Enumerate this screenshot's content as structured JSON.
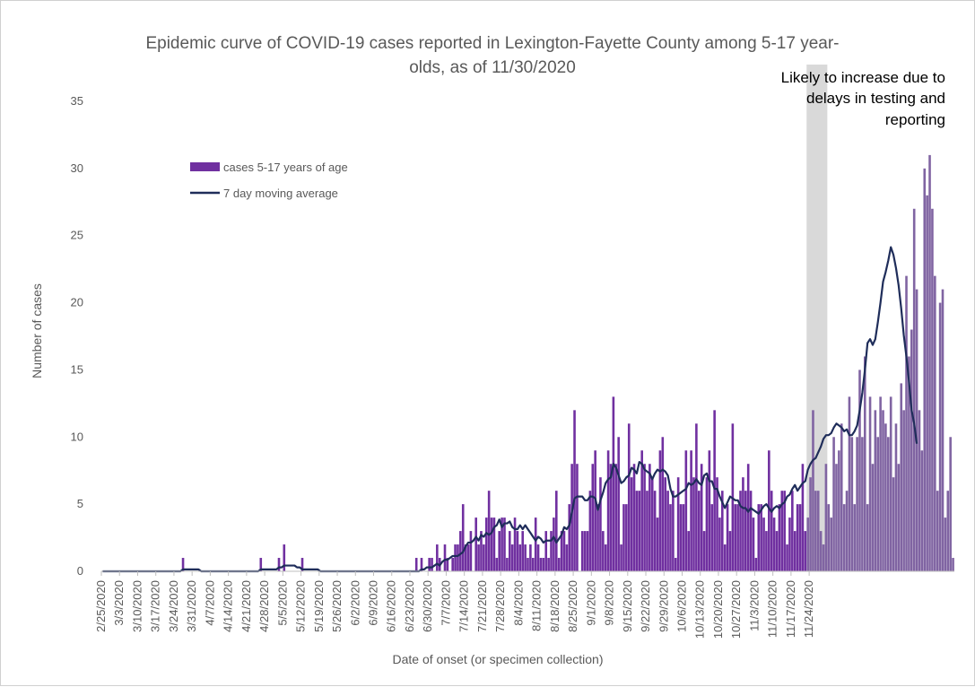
{
  "chart_data": {
    "type": "bar",
    "title_lines": [
      "Epidemic curve of COVID-19 cases reported in Lexington-Fayette County among 5-17 year-",
      "olds, as of 11/30/2020"
    ],
    "xlabel": "Date of onset (or specimen collection)",
    "ylabel": "Number of cases",
    "ylim": [
      0,
      35
    ],
    "yticks": [
      0,
      5,
      10,
      15,
      20,
      25,
      30,
      35
    ],
    "start_date": "2/25/2020",
    "xticks": [
      "2/25/2020",
      "3/3/2020",
      "3/10/2020",
      "3/17/2020",
      "3/24/2020",
      "3/31/2020",
      "4/7/2020",
      "4/14/2020",
      "4/21/2020",
      "4/28/2020",
      "5/5/2020",
      "5/12/2020",
      "5/19/2020",
      "5/26/2020",
      "6/2/2020",
      "6/9/2020",
      "6/16/2020",
      "6/23/2020",
      "6/30/2020",
      "7/7/2020",
      "7/14/2020",
      "7/21/2020",
      "7/28/2020",
      "8/4/2020",
      "8/11/2020",
      "8/18/2020",
      "8/25/2020",
      "9/1/2020",
      "9/8/2020",
      "9/15/2020",
      "9/22/2020",
      "9/29/2020",
      "10/6/2020",
      "10/13/2020",
      "10/20/2020",
      "10/27/2020",
      "11/3/2020",
      "11/10/2020",
      "11/17/2020",
      "11/24/2020"
    ],
    "grid": false,
    "legend": {
      "position": "upper-left",
      "entries": [
        "cases 5-17 years of age",
        "7 day moving average"
      ]
    },
    "annotation": {
      "lines": [
        "Likely to increase due to",
        "delays in testing and",
        "reporting"
      ],
      "shaded_from": "11/23/2020",
      "shaded_to": "11/30/2020"
    },
    "series": [
      {
        "name": "cases 5-17 years of age",
        "type": "bar",
        "color": "#7030a0",
        "values": [
          0,
          0,
          0,
          0,
          0,
          0,
          0,
          0,
          0,
          0,
          0,
          0,
          0,
          0,
          0,
          0,
          0,
          0,
          0,
          0,
          0,
          0,
          0,
          0,
          0,
          0,
          0,
          0,
          0,
          0,
          0,
          1,
          0,
          0,
          0,
          0,
          0,
          0,
          0,
          0,
          0,
          0,
          0,
          0,
          0,
          0,
          0,
          0,
          0,
          0,
          0,
          0,
          0,
          0,
          0,
          0,
          0,
          0,
          0,
          0,
          0,
          1,
          0,
          0,
          0,
          0,
          0,
          0,
          1,
          0,
          2,
          0,
          0,
          0,
          0,
          0,
          0,
          1,
          0,
          0,
          0,
          0,
          0,
          0,
          0,
          0,
          0,
          0,
          0,
          0,
          0,
          0,
          0,
          0,
          0,
          0,
          0,
          0,
          0,
          0,
          0,
          0,
          0,
          0,
          0,
          0,
          0,
          0,
          0,
          0,
          0,
          0,
          0,
          0,
          0,
          0,
          0,
          0,
          0,
          0,
          0,
          1,
          0,
          1,
          0,
          0,
          1,
          1,
          0,
          2,
          1,
          0,
          2,
          1,
          0,
          1,
          2,
          2,
          3,
          5,
          2,
          2,
          3,
          0,
          4,
          2,
          3,
          2,
          4,
          6,
          4,
          4,
          1,
          3,
          4,
          4,
          1,
          3,
          2,
          4,
          3,
          2,
          3,
          2,
          1,
          2,
          1,
          4,
          2,
          1,
          1,
          3,
          1,
          3,
          4,
          6,
          1,
          3,
          3,
          2,
          5,
          8,
          12,
          8,
          0,
          3,
          3,
          3,
          6,
          8,
          9,
          5,
          7,
          3,
          2,
          9,
          8,
          13,
          8,
          10,
          2,
          5,
          5,
          11,
          7,
          8,
          6,
          6,
          9,
          8,
          6,
          8,
          7,
          6,
          4,
          9,
          10,
          7,
          6,
          5,
          6,
          1,
          7,
          5,
          5,
          9,
          3,
          9,
          7,
          11,
          6,
          8,
          3,
          7,
          9,
          5,
          12,
          7,
          4,
          6,
          2,
          5,
          3,
          11,
          5,
          5,
          6,
          7,
          6,
          8,
          6,
          4,
          1,
          5,
          5,
          4,
          3,
          9,
          6,
          4,
          3,
          5,
          6,
          6,
          2,
          4,
          6,
          3,
          5,
          5,
          8,
          3,
          4,
          7,
          12,
          6,
          6,
          3,
          2,
          8,
          5,
          4,
          10,
          8,
          9,
          11,
          5,
          6,
          13,
          10,
          5,
          10,
          15,
          10,
          16,
          5,
          13,
          8,
          12,
          10,
          13,
          12,
          11,
          10,
          13,
          7,
          11,
          8,
          14,
          12,
          22,
          16,
          18,
          27,
          21,
          12,
          9,
          30,
          28,
          31,
          27,
          22,
          6,
          20,
          21,
          4,
          6,
          10,
          1
        ]
      },
      {
        "name": "7 day moving average",
        "type": "line",
        "color": "#1f2d5a",
        "values": [
          0,
          0,
          0,
          0,
          0,
          0,
          0,
          0,
          0,
          0,
          0,
          0,
          0,
          0,
          0,
          0,
          0,
          0,
          0,
          0,
          0,
          0,
          0,
          0,
          0,
          0,
          0,
          0,
          0,
          0,
          0,
          0.14,
          0.14,
          0.14,
          0.14,
          0.14,
          0.14,
          0.14,
          0,
          0,
          0,
          0,
          0,
          0,
          0,
          0,
          0,
          0,
          0,
          0,
          0,
          0,
          0,
          0,
          0,
          0,
          0,
          0,
          0,
          0,
          0,
          0.14,
          0.14,
          0.14,
          0.14,
          0.14,
          0.14,
          0.14,
          0.29,
          0.29,
          0.43,
          0.43,
          0.43,
          0.43,
          0.43,
          0.29,
          0.29,
          0.14,
          0.14,
          0.14,
          0.14,
          0.14,
          0.14,
          0.14,
          0,
          0,
          0,
          0,
          0,
          0,
          0,
          0,
          0,
          0,
          0,
          0,
          0,
          0,
          0,
          0,
          0,
          0,
          0,
          0,
          0,
          0,
          0,
          0,
          0,
          0,
          0,
          0,
          0,
          0,
          0,
          0,
          0,
          0,
          0,
          0,
          0,
          0,
          0,
          0.14,
          0.14,
          0.29,
          0.29,
          0.29,
          0.43,
          0.57,
          0.43,
          0.71,
          0.86,
          0.86,
          1,
          1.14,
          1.14,
          1.14,
          1.29,
          1.43,
          1.86,
          2.14,
          2.14,
          2.29,
          2.57,
          2.29,
          2.71,
          2.57,
          2.86,
          2.71,
          2.86,
          3.29,
          3.43,
          3.86,
          3.29,
          3.57,
          3.57,
          3.71,
          3.29,
          3.14,
          3.14,
          3.43,
          3.14,
          3.43,
          3.14,
          2.86,
          2.57,
          2.29,
          2.57,
          2.43,
          2.14,
          2.29,
          2.29,
          2.29,
          2.57,
          2.14,
          2.43,
          2.71,
          3.29,
          3.14,
          3.43,
          4.43,
          5.43,
          5.57,
          5.57,
          5.57,
          5.29,
          5.29,
          5.57,
          5.57,
          5.43,
          4.57,
          5.29,
          5.86,
          6.57,
          6.86,
          7,
          8,
          7.71,
          7.14,
          6.57,
          6.71,
          7,
          7.14,
          7.71,
          7.57,
          7.29,
          8.14,
          8,
          7.57,
          7.43,
          7.29,
          6.86,
          7.29,
          7.57,
          7.43,
          7.57,
          7.43,
          7.14,
          6.14,
          5.57,
          5.57,
          5.71,
          5.86,
          6,
          6.14,
          6.57,
          6.43,
          6.57,
          6.86,
          6.57,
          6.43,
          7.14,
          7.29,
          6.71,
          6.71,
          6.14,
          6.14,
          5.57,
          5.14,
          4.71,
          5.14,
          5.57,
          5.43,
          5.29,
          5.29,
          4.86,
          4.71,
          4.71,
          4.43,
          4.71,
          4.57,
          4.43,
          4.29,
          4.57,
          4.86,
          5,
          4.71,
          4.43,
          4.71,
          4.86,
          4.71,
          5,
          5.14,
          5.57,
          5.71,
          6.14,
          6.43,
          6,
          6.29,
          6.57,
          6.71,
          7.57,
          8,
          8.29,
          8.43,
          8.86,
          9.29,
          9.86,
          10.14,
          10.14,
          10.29,
          10.71,
          11,
          10.86,
          10.71,
          10.43,
          10.57,
          10.14,
          10.14,
          10.43,
          10.86,
          12,
          13.29,
          15,
          17,
          17.29,
          16.86,
          17.29,
          18.57,
          20,
          21.57,
          22.29,
          23.14,
          24.14,
          23.57,
          22.57,
          21.29,
          19.57,
          17.57,
          16,
          14.14,
          12,
          11,
          9.5
        ]
      }
    ]
  }
}
